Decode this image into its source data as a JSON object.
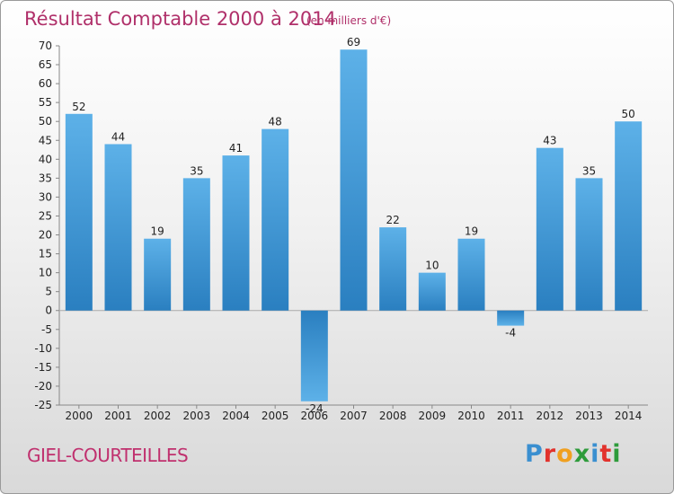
{
  "chart_data": {
    "type": "bar",
    "title": "Résultat Comptable 2000 à 2014",
    "subtitle": "(en milliers d'€)",
    "categories": [
      "2000",
      "2001",
      "2002",
      "2003",
      "2004",
      "2005",
      "2006",
      "2007",
      "2008",
      "2009",
      "2010",
      "2011",
      "2012",
      "2013",
      "2014"
    ],
    "values": [
      52,
      44,
      19,
      35,
      41,
      48,
      -24,
      69,
      22,
      10,
      19,
      -4,
      43,
      35,
      50
    ],
    "ylim": [
      -25,
      70
    ],
    "ytick_step": 5,
    "xlabel": "",
    "ylabel": "",
    "grid": false,
    "bar_color_light": "#5db1e8",
    "bar_color_dark": "#2a7fc0"
  },
  "commune": "GIEL-COURTEILLES",
  "logo": {
    "letters": [
      {
        "ch": "P",
        "color": "#3a8fd0"
      },
      {
        "ch": "r",
        "color": "#e2322c"
      },
      {
        "ch": "o",
        "color": "#f0a020"
      },
      {
        "ch": "x",
        "color": "#2e9b3b"
      },
      {
        "ch": "i",
        "color": "#3a8fd0"
      },
      {
        "ch": "t",
        "color": "#e2322c"
      },
      {
        "ch": "i",
        "color": "#2e9b3b"
      }
    ]
  }
}
